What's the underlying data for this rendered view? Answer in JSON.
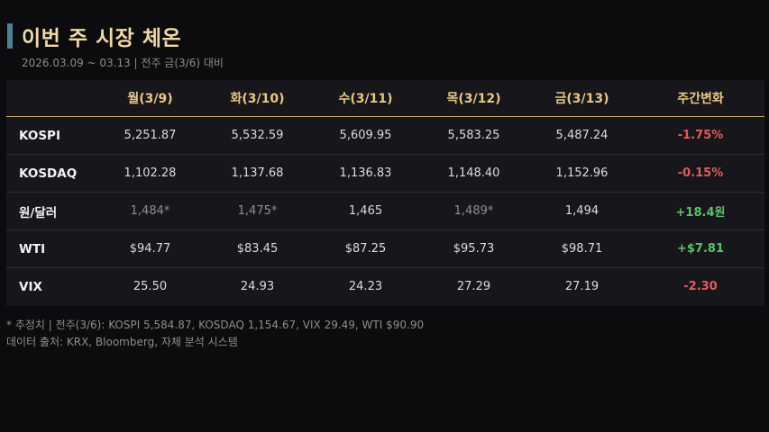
{
  "header": {
    "title": "이번 주 시장 체온",
    "subtitle": "2026.03.09 ~ 03.13  |  전주 금(3/6) 대비"
  },
  "table": {
    "columns": [
      "",
      "월(3/9)",
      "화(3/10)",
      "수(3/11)",
      "목(3/12)",
      "금(3/13)",
      "주간변화"
    ],
    "rows": [
      {
        "label": "KOSPI",
        "cells": [
          "5,251.87",
          "5,532.59",
          "5,609.95",
          "5,583.25",
          "5,487.24"
        ],
        "estimated": [
          false,
          false,
          false,
          false,
          false
        ],
        "change": "-1.75%",
        "trend": "neg"
      },
      {
        "label": "KOSDAQ",
        "cells": [
          "1,102.28",
          "1,137.68",
          "1,136.83",
          "1,148.40",
          "1,152.96"
        ],
        "estimated": [
          false,
          false,
          false,
          false,
          false
        ],
        "change": "-0.15%",
        "trend": "neg"
      },
      {
        "label": "원/달러",
        "cells": [
          "1,484*",
          "1,475*",
          "1,465",
          "1,489*",
          "1,494"
        ],
        "estimated": [
          true,
          true,
          false,
          true,
          false
        ],
        "change": "+18.4원",
        "trend": "pos"
      },
      {
        "label": "WTI",
        "cells": [
          "$94.77",
          "$83.45",
          "$87.25",
          "$95.73",
          "$98.71"
        ],
        "estimated": [
          false,
          false,
          false,
          false,
          false
        ],
        "change": "+$7.81",
        "trend": "pos"
      },
      {
        "label": "VIX",
        "cells": [
          "25.50",
          "24.93",
          "24.23",
          "27.29",
          "27.19"
        ],
        "estimated": [
          false,
          false,
          false,
          false,
          false
        ],
        "change": "-2.30",
        "trend": "neg"
      }
    ]
  },
  "footnotes": {
    "line1": "* 추정치  |  전주(3/6): KOSPI 5,584.87, KOSDAQ 1,154.67, VIX 29.49, WTI $90.90",
    "line2": "데이터 출처: KRX, Bloomberg, 자체 분석 시스템"
  },
  "colors": {
    "accent_bar": "#4f7f97",
    "title": "#f0d8a8",
    "header_text": "#e8c784",
    "negative": "#e35b5b",
    "positive": "#5cc26a"
  }
}
